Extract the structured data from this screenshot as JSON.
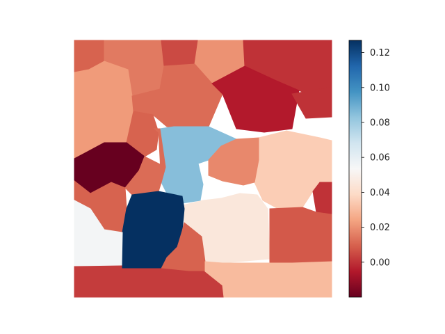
{
  "chart_data": {
    "type": "heatmap",
    "title": "",
    "xlabel": "",
    "ylabel": "",
    "colormap": "RdBu",
    "colorbar": {
      "range": [
        -0.02,
        0.127
      ],
      "ticks": [
        0.0,
        0.02,
        0.04,
        0.06,
        0.08,
        0.1,
        0.12
      ],
      "tick_labels": [
        "0.00",
        "0.02",
        "0.04",
        "0.06",
        "0.08",
        "0.10",
        "0.12"
      ]
    },
    "regions": [
      {
        "id": "r01",
        "value": 0.01
      },
      {
        "id": "r02",
        "value": 0.015
      },
      {
        "id": "r03",
        "value": 0.005
      },
      {
        "id": "r04",
        "value": 0.02
      },
      {
        "id": "r05",
        "value": 0.0
      },
      {
        "id": "r06",
        "value": 0.022
      },
      {
        "id": "r07",
        "value": 0.012
      },
      {
        "id": "r08",
        "value": -0.005
      },
      {
        "id": "r09",
        "value": 0.0
      },
      {
        "id": "r10",
        "value": 0.01
      },
      {
        "id": "r11",
        "value": -0.02
      },
      {
        "id": "r12",
        "value": 0.085
      },
      {
        "id": "r13",
        "value": 0.035
      },
      {
        "id": "r14",
        "value": 0.018
      },
      {
        "id": "r15",
        "value": 0.012
      },
      {
        "id": "r16",
        "value": 0.01
      },
      {
        "id": "r17",
        "value": 0.0
      },
      {
        "id": "r18",
        "value": 0.045
      },
      {
        "id": "r19",
        "value": 0.127
      },
      {
        "id": "r20",
        "value": 0.055
      },
      {
        "id": "r21",
        "value": 0.008
      },
      {
        "id": "r22",
        "value": 0.01
      },
      {
        "id": "r23",
        "value": 0.002
      },
      {
        "id": "r24",
        "value": 0.03
      },
      {
        "id": "r25",
        "value": 0.012
      }
    ]
  }
}
